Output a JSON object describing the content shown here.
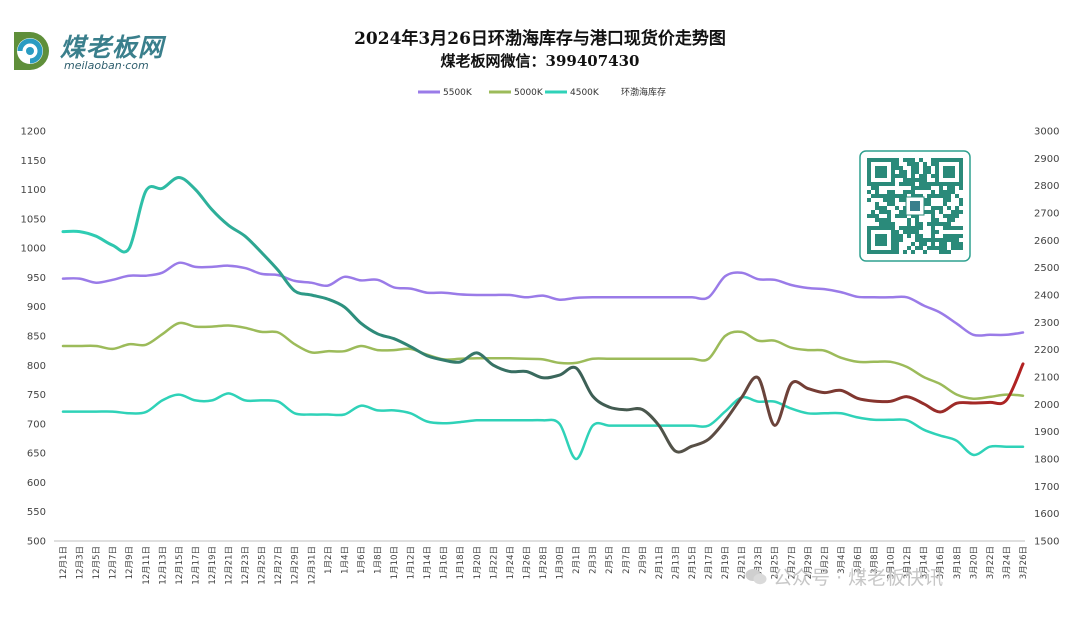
{
  "header": {
    "logo_text": "煤老板网",
    "logo_url_text": "meilaoban·com",
    "title": "2024年3月26日环渤海库存与港口现货价走势图",
    "subtitle": "煤老板网微信：399407430",
    "watermark": "公众号 · 煤老板快讯"
  },
  "icons": {
    "logo": "coal-logo-icon",
    "qr": "qr-code-icon",
    "wechat": "wechat-icon"
  },
  "chart_data": {
    "type": "line",
    "title": "2024年3月26日环渤海库存与港口现货价走势图",
    "xlabel": "",
    "ylabel": "",
    "ylim": [
      500,
      1200
    ],
    "y2lim": [
      1500,
      3000
    ],
    "left_ticks": [
      "1200",
      "1150",
      "1100",
      "1050",
      "1000",
      "950",
      "900",
      "850",
      "800",
      "750",
      "700",
      "650",
      "600",
      "550",
      "500"
    ],
    "right_ticks": [
      "3000",
      "2900",
      "2800",
      "2700",
      "2600",
      "2500",
      "2400",
      "2300",
      "2200",
      "2100",
      "2000",
      "1900",
      "1800",
      "1700",
      "1600",
      "1500"
    ],
    "legend_position": "top-center",
    "grid": false,
    "x_labels": [
      "12月1日",
      "12月3日",
      "12月5日",
      "12月7日",
      "12月9日",
      "12月11日",
      "12月13日",
      "12月15日",
      "12月17日",
      "12月19日",
      "12月21日",
      "12月23日",
      "12月25日",
      "12月27日",
      "12月29日",
      "12月31日",
      "1月2日",
      "1月4日",
      "1月6日",
      "1月8日",
      "1月10日",
      "1月12日",
      "1月14日",
      "1月16日",
      "1月18日",
      "1月20日",
      "1月22日",
      "1月24日",
      "1月26日",
      "1月28日",
      "1月30日",
      "2月1日",
      "2月3日",
      "2月5日",
      "2月7日",
      "2月9日",
      "2月11日",
      "2月13日",
      "2月15日",
      "2月17日",
      "2月19日",
      "2月21日",
      "2月23日",
      "2月25日",
      "2月27日",
      "2月29日",
      "3月2日",
      "3月4日",
      "3月6日",
      "3月8日",
      "3月10日",
      "3月12日",
      "3月14日",
      "3月16日",
      "3月18日",
      "3月20日",
      "3月22日",
      "3月24日",
      "3月26日"
    ],
    "series": [
      {
        "name": "5500K",
        "axis": "left",
        "color": "#9a7be8",
        "values": [
          948,
          948,
          941,
          946,
          953,
          953,
          958,
          975,
          968,
          968,
          970,
          966,
          956,
          954,
          944,
          941,
          936,
          951,
          945,
          946,
          933,
          931,
          924,
          924,
          921,
          920,
          920,
          920,
          916,
          919,
          912,
          915,
          916,
          916,
          916,
          916,
          916,
          916,
          916,
          916,
          952,
          958,
          947,
          946,
          937,
          932,
          930,
          925,
          917,
          916,
          916,
          916,
          902,
          890,
          871,
          852,
          852,
          852,
          856
        ]
      },
      {
        "name": "5000K",
        "axis": "left",
        "color": "#9cbb5a",
        "values": [
          833,
          833,
          833,
          828,
          836,
          835,
          853,
          872,
          866,
          866,
          868,
          864,
          857,
          856,
          836,
          822,
          824,
          824,
          833,
          826,
          826,
          828,
          818,
          810,
          811,
          812,
          812,
          812,
          811,
          810,
          804,
          804,
          811,
          811,
          811,
          811,
          811,
          811,
          811,
          811,
          850,
          857,
          842,
          842,
          830,
          826,
          825,
          813,
          806,
          806,
          806,
          797,
          780,
          768,
          750,
          743,
          746,
          750,
          748
        ]
      },
      {
        "name": "4500K",
        "axis": "left",
        "color": "#2fd2b8",
        "values": [
          721,
          721,
          721,
          721,
          718,
          720,
          740,
          750,
          740,
          740,
          752,
          740,
          740,
          738,
          718,
          716,
          716,
          716,
          731,
          723,
          723,
          718,
          704,
          701,
          703,
          706,
          706,
          706,
          706,
          706,
          700,
          640,
          697,
          697,
          697,
          697,
          697,
          697,
          697,
          697,
          721,
          745,
          738,
          738,
          726,
          718,
          718,
          718,
          711,
          707,
          707,
          706,
          690,
          680,
          671,
          647,
          661,
          661,
          661
        ]
      },
      {
        "name": "环渤海库存",
        "axis": "right",
        "color_start": "#2fd2b8",
        "color_end": "#b22222",
        "values": [
          2632,
          2632,
          2615,
          2582,
          2571,
          2780,
          2790,
          2830,
          2786,
          2712,
          2655,
          2615,
          2555,
          2490,
          2415,
          2400,
          2385,
          2356,
          2297,
          2258,
          2240,
          2211,
          2178,
          2162,
          2155,
          2188,
          2143,
          2120,
          2120,
          2097,
          2107,
          2133,
          2030,
          1990,
          1980,
          1981,
          1923,
          1829,
          1847,
          1872,
          1940,
          2025,
          2097,
          1923,
          2076,
          2058,
          2043,
          2051,
          2022,
          2012,
          2011,
          2028,
          2002,
          1972,
          2004,
          2005,
          2007,
          2015,
          2148
        ]
      }
    ]
  }
}
